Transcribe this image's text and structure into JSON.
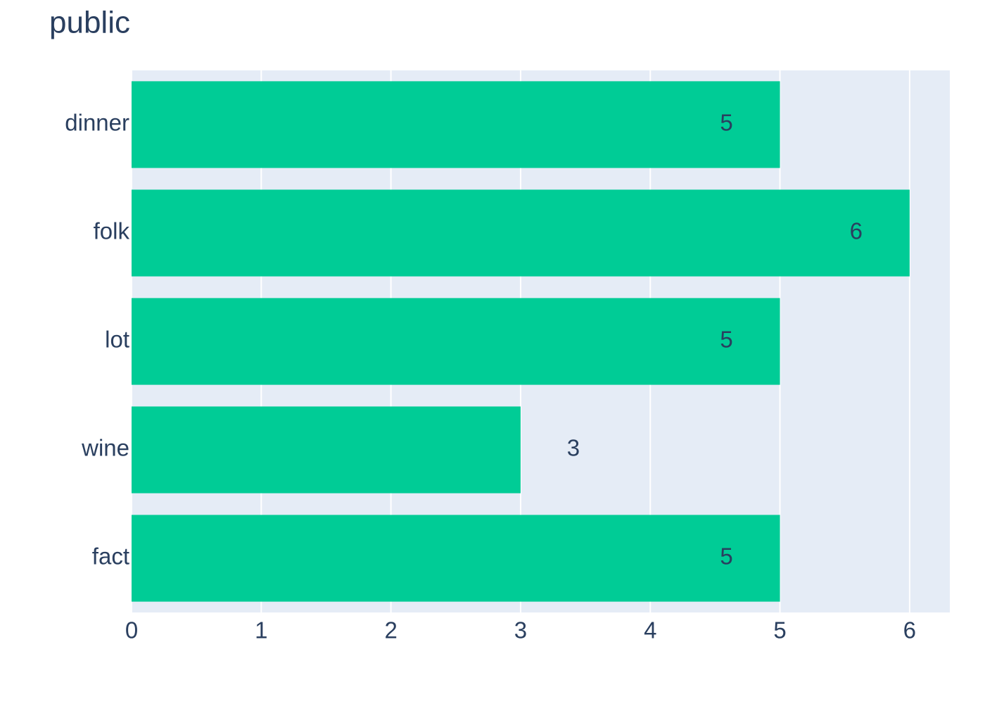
{
  "chart_data": {
    "type": "bar",
    "orientation": "horizontal",
    "title": "public",
    "categories": [
      "dinner",
      "folk",
      "lot",
      "wine",
      "fact"
    ],
    "values": [
      5,
      6,
      5,
      3,
      5
    ],
    "color": "#00cc96",
    "xlim": [
      0,
      6.31
    ],
    "xticks": [
      0,
      1,
      2,
      3,
      4,
      5,
      6
    ],
    "grid": true
  }
}
